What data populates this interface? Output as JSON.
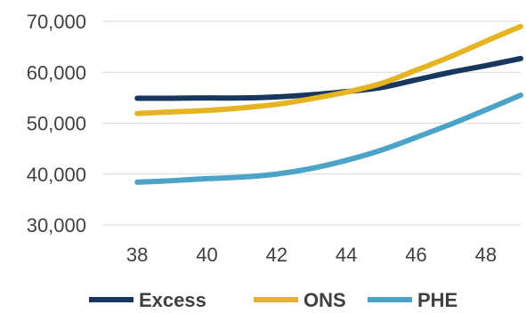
{
  "chart_data": {
    "type": "line",
    "title": "",
    "xlabel": "",
    "ylabel": "",
    "x": [
      38,
      39,
      40,
      41,
      42,
      43,
      44,
      45,
      46,
      47,
      48,
      49
    ],
    "xticks": [
      38,
      40,
      42,
      44,
      46,
      48
    ],
    "xlim": [
      37,
      49
    ],
    "ylim": [
      30000,
      70000
    ],
    "yticks": [
      30000,
      40000,
      50000,
      60000,
      70000
    ],
    "ytick_labels": [
      "30,000",
      "40,000",
      "50,000",
      "60,000",
      "70,000"
    ],
    "grid": "horizontal",
    "legend_position": "bottom",
    "series": [
      {
        "name": "Excess",
        "color": "#17375e",
        "values": [
          54900,
          54900,
          54950,
          54950,
          55150,
          55600,
          56200,
          57000,
          58500,
          60000,
          61300,
          62700
        ]
      },
      {
        "name": "ONS",
        "color": "#e6b323",
        "values": [
          51900,
          52200,
          52500,
          53000,
          53700,
          54800,
          56100,
          57800,
          60400,
          63100,
          66100,
          69000
        ]
      },
      {
        "name": "PHE",
        "color": "#4ba3c7",
        "values": [
          38400,
          38700,
          39100,
          39400,
          40000,
          41100,
          42700,
          44700,
          47200,
          49800,
          52600,
          55500
        ]
      }
    ]
  }
}
